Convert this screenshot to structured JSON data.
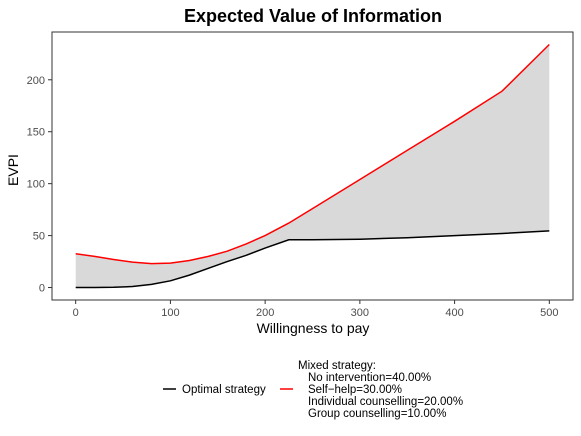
{
  "chart_data": {
    "type": "line",
    "title": "Expected Value of Information",
    "xlabel": "Willingness to pay",
    "ylabel": "EVPI",
    "xlim": [
      -25,
      525
    ],
    "ylim": [
      -12,
      246
    ],
    "x_ticks": [
      0,
      100,
      200,
      300,
      400,
      500
    ],
    "y_ticks": [
      0,
      50,
      100,
      150,
      200
    ],
    "grid": false,
    "legend_placement": "bottom",
    "shaded_area": {
      "between": [
        "Mixed strategy",
        "Optimal strategy"
      ],
      "color": "#d9d9d9"
    },
    "series": [
      {
        "name": "Optimal strategy",
        "color": "#000000",
        "x": [
          0,
          20,
          40,
          60,
          80,
          100,
          120,
          140,
          160,
          180,
          200,
          225,
          250,
          300,
          350,
          400,
          450,
          500
        ],
        "y": [
          0,
          0,
          0.2,
          1,
          3,
          6.5,
          12,
          18.5,
          25,
          31,
          38,
          46,
          46,
          46.5,
          48,
          50,
          52,
          54.5
        ]
      },
      {
        "name": "Mixed strategy:",
        "color": "#ff0000",
        "sublabels": [
          "No intervention=40.00%",
          "Self−help=30.00%",
          "Individual counselling=20.00%",
          "Group counselling=10.00%"
        ],
        "x": [
          0,
          20,
          40,
          60,
          80,
          100,
          120,
          140,
          160,
          180,
          200,
          225,
          250,
          300,
          350,
          400,
          450,
          500
        ],
        "y": [
          32.5,
          30,
          27,
          24.5,
          23,
          23.5,
          26,
          30,
          35,
          42,
          50,
          62,
          76,
          104,
          132,
          160,
          189,
          234
        ]
      }
    ]
  }
}
